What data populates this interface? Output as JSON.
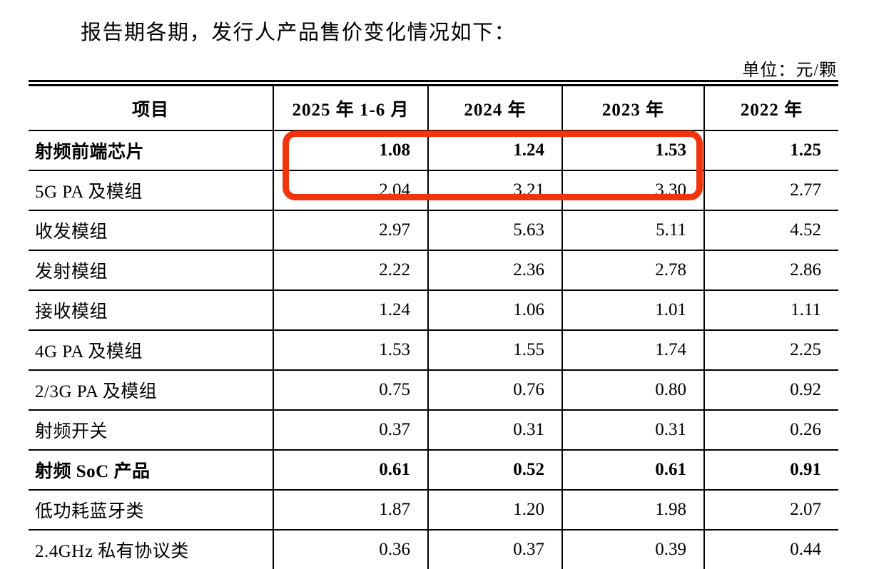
{
  "page": {
    "title": "报告期各期，发行人产品售价变化情况如下：",
    "unit_label": "单位：元/颗"
  },
  "table": {
    "columns": [
      "项目",
      "2025 年 1-6 月",
      "2024 年",
      "2023 年",
      "2022 年"
    ],
    "rows": [
      {
        "label": "射频前端芯片",
        "values": [
          "1.08",
          "1.24",
          "1.53",
          "1.25"
        ],
        "bold": true
      },
      {
        "label": "5G PA 及模组",
        "values": [
          "2.04",
          "3.21",
          "3.30",
          "2.77"
        ],
        "bold": false
      },
      {
        "label": "收发模组",
        "values": [
          "2.97",
          "5.63",
          "5.11",
          "4.52"
        ],
        "bold": false
      },
      {
        "label": "发射模组",
        "values": [
          "2.22",
          "2.36",
          "2.78",
          "2.86"
        ],
        "bold": false
      },
      {
        "label": "接收模组",
        "values": [
          "1.24",
          "1.06",
          "1.01",
          "1.11"
        ],
        "bold": false
      },
      {
        "label": "4G PA 及模组",
        "values": [
          "1.53",
          "1.55",
          "1.74",
          "2.25"
        ],
        "bold": false
      },
      {
        "label": "2/3G PA 及模组",
        "values": [
          "0.75",
          "0.76",
          "0.80",
          "0.92"
        ],
        "bold": false
      },
      {
        "label": "射频开关",
        "values": [
          "0.37",
          "0.31",
          "0.31",
          "0.26"
        ],
        "bold": false
      },
      {
        "label": "射频 SoC 产品",
        "values": [
          "0.61",
          "0.52",
          "0.61",
          "0.91"
        ],
        "bold": true
      },
      {
        "label": "低功耗蓝牙类",
        "values": [
          "1.87",
          "1.20",
          "1.98",
          "2.07"
        ],
        "bold": false
      },
      {
        "label": "2.4GHz 私有协议类",
        "values": [
          "0.36",
          "0.37",
          "0.39",
          "0.44"
        ],
        "bold": false
      }
    ]
  },
  "annotation": {
    "type": "red-highlight-box",
    "color": "#f2340e",
    "covers": "rows 射频前端芯片 and 5G PA 及模组, columns 2025 年 1-6 月 / 2024 年 / 2023 年"
  }
}
